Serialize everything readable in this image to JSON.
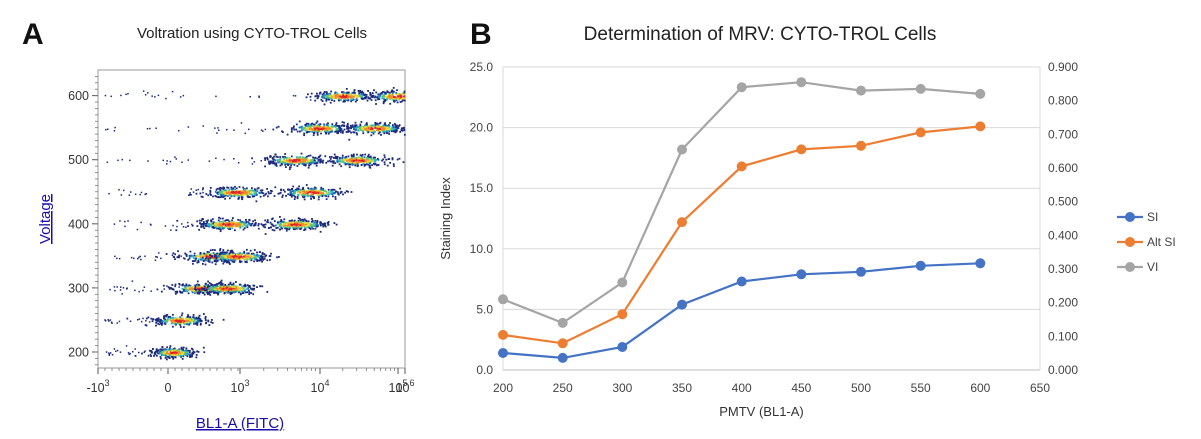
{
  "panel_a": {
    "letter": "A",
    "chart_data": {
      "type": "scatter",
      "title": "Voltration using CYTO-TROL Cells",
      "xlabel": "BL1-A (FITC)",
      "ylabel": "Voltage",
      "x_scale": "biexponential",
      "x_tick_labels": [
        "-10",
        "0",
        "10",
        "10",
        "10",
        "10"
      ],
      "x_tick_exponents": [
        "3",
        "",
        "3",
        "4",
        "5",
        "6"
      ],
      "y_ticks": [
        200,
        300,
        400,
        500,
        600
      ],
      "y_tick_labels": [
        "200",
        "300",
        "400",
        "500",
        "600"
      ],
      "ylim": [
        175,
        640
      ],
      "populations": [
        {
          "voltage": 200,
          "center_x": [
            0.6
          ],
          "log_spread": 0.8
        },
        {
          "voltage": 250,
          "center_x": [
            2.0
          ],
          "log_spread": 1.2
        },
        {
          "voltage": 300,
          "center_x": [
            20,
            300
          ],
          "log_spread": 1.5
        },
        {
          "voltage": 350,
          "center_x": [
            60,
            800
          ],
          "log_spread": 1.6
        },
        {
          "voltage": 400,
          "center_x": [
            300,
            5000
          ],
          "log_spread": 1.6
        },
        {
          "voltage": 450,
          "center_x": [
            700,
            8000
          ],
          "log_spread": 1.7
        },
        {
          "voltage": 500,
          "center_x": [
            5000,
            30000
          ],
          "log_spread": 1.6
        },
        {
          "voltage": 550,
          "center_x": [
            10000,
            50000
          ],
          "log_spread": 1.6
        },
        {
          "voltage": 600,
          "center_x": [
            20000,
            100000
          ],
          "log_spread": 1.6
        }
      ]
    }
  },
  "panel_b": {
    "letter": "B",
    "chart_data": {
      "type": "line",
      "title": "Determination of MRV: CYTO-TROL Cells",
      "xlabel": "PMTV (BL1-A)",
      "ylabel": "Staining Index",
      "x": [
        200,
        250,
        300,
        350,
        400,
        450,
        500,
        550,
        600
      ],
      "xlim": [
        200,
        650
      ],
      "x_ticks": [
        200,
        250,
        300,
        350,
        400,
        450,
        500,
        550,
        600,
        650
      ],
      "x_tick_labels": [
        "200",
        "250",
        "300",
        "350",
        "400",
        "450",
        "500",
        "550",
        "600",
        "650"
      ],
      "ylim": [
        0,
        25
      ],
      "y_ticks": [
        0,
        5,
        10,
        15,
        20,
        25
      ],
      "y_tick_labels": [
        "0.0",
        "5.0",
        "10.0",
        "15.0",
        "20.0",
        "25.0"
      ],
      "y2lim": [
        0,
        0.9
      ],
      "y2_ticks": [
        0,
        0.1,
        0.2,
        0.3,
        0.4,
        0.5,
        0.6,
        0.7,
        0.8,
        0.9
      ],
      "y2_tick_labels": [
        "0.000",
        "0.100",
        "0.200",
        "0.300",
        "0.400",
        "0.500",
        "0.600",
        "0.700",
        "0.800",
        "0.900"
      ],
      "grid": true,
      "legend_position": "right",
      "series": [
        {
          "name": "SI",
          "axis": "left",
          "color": "#4472c4",
          "values": [
            1.4,
            1.0,
            1.9,
            5.4,
            7.3,
            7.9,
            8.1,
            8.6,
            8.8
          ]
        },
        {
          "name": "Alt SI",
          "axis": "left",
          "color": "#ed7d31",
          "values": [
            2.9,
            2.2,
            4.6,
            12.2,
            16.8,
            18.2,
            18.5,
            19.6,
            20.1
          ]
        },
        {
          "name": "VI",
          "axis": "right",
          "color": "#a5a5a5",
          "values": [
            0.21,
            0.14,
            0.26,
            0.655,
            0.84,
            0.855,
            0.83,
            0.835,
            0.82
          ]
        }
      ]
    }
  }
}
